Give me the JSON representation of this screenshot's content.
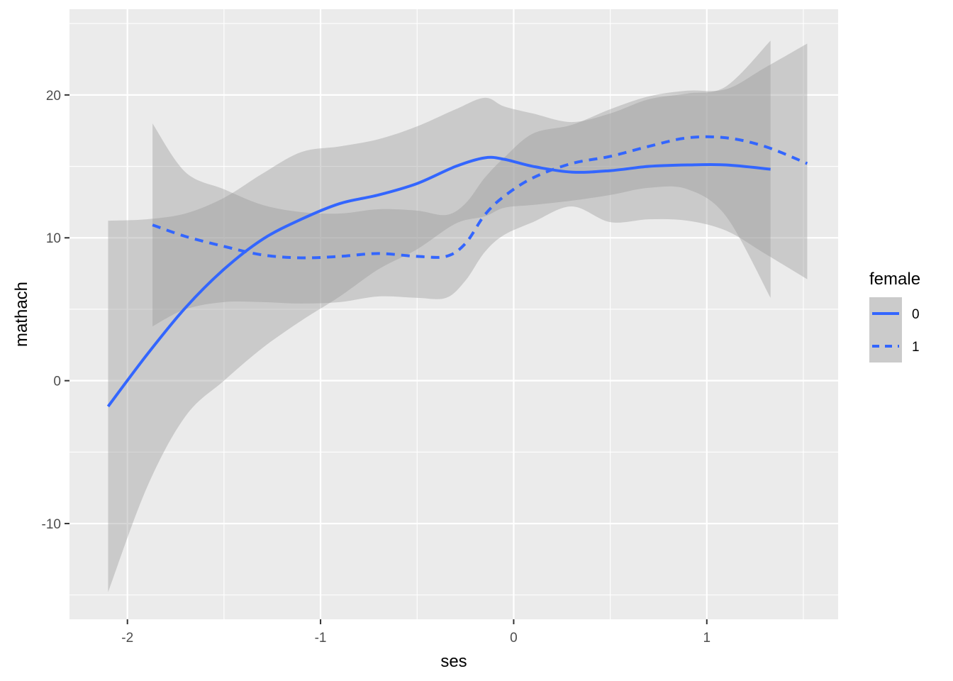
{
  "chart_data": {
    "type": "line",
    "xlabel": "ses",
    "ylabel": "mathach",
    "xlim": [
      -2.3,
      1.68
    ],
    "ylim": [
      -16.7,
      26.0
    ],
    "x_ticks": [
      -2,
      -1,
      0,
      1
    ],
    "x_tick_labels": [
      "-2",
      "-1",
      "0",
      "1"
    ],
    "y_ticks": [
      -10,
      0,
      10,
      20
    ],
    "y_tick_labels": [
      "-10",
      "0",
      "10",
      "20"
    ],
    "grid": true,
    "panel_background": "#ebebeb",
    "grid_color": "#ffffff",
    "legend": {
      "title": "female",
      "placement": "right",
      "entries": [
        {
          "label": "0",
          "linetype": "solid"
        },
        {
          "label": "1",
          "linetype": "dashed"
        }
      ]
    },
    "series": [
      {
        "name": "0",
        "color": "#3366ff",
        "linetype": "solid",
        "x": [
          -2.1,
          -1.9,
          -1.7,
          -1.5,
          -1.3,
          -1.1,
          -0.9,
          -0.7,
          -0.5,
          -0.3,
          -0.15,
          -0.05,
          0.1,
          0.3,
          0.5,
          0.7,
          0.9,
          1.1,
          1.33
        ],
        "y": [
          -1.8,
          1.8,
          5.1,
          7.8,
          9.9,
          11.3,
          12.4,
          13.0,
          13.8,
          15.0,
          15.6,
          15.5,
          15.0,
          14.6,
          14.7,
          15.0,
          15.1,
          15.1,
          14.8
        ],
        "ci_lower": [
          -14.8,
          -7.5,
          -2.5,
          0.0,
          2.3,
          4.2,
          5.9,
          7.8,
          9.2,
          11.0,
          11.5,
          12.1,
          12.3,
          12.6,
          13.0,
          13.5,
          13.4,
          11.5,
          5.8
        ],
        "ci_upper": [
          11.2,
          11.3,
          11.7,
          12.8,
          14.5,
          16.0,
          16.4,
          16.9,
          17.8,
          19.0,
          19.8,
          19.2,
          18.7,
          18.1,
          18.7,
          19.7,
          20.1,
          20.6,
          23.8
        ]
      },
      {
        "name": "1",
        "color": "#3366ff",
        "linetype": "dashed",
        "x": [
          -1.87,
          -1.7,
          -1.5,
          -1.3,
          -1.1,
          -0.9,
          -0.7,
          -0.5,
          -0.35,
          -0.25,
          -0.15,
          -0.05,
          0.1,
          0.3,
          0.5,
          0.7,
          0.9,
          1.1,
          1.3,
          1.52
        ],
        "y": [
          10.9,
          10.1,
          9.4,
          8.8,
          8.6,
          8.7,
          8.9,
          8.7,
          8.7,
          9.6,
          11.6,
          12.9,
          14.2,
          15.2,
          15.7,
          16.4,
          17.0,
          17.0,
          16.4,
          15.2
        ],
        "ci_lower": [
          3.8,
          5.0,
          5.5,
          5.5,
          5.4,
          5.5,
          5.9,
          5.8,
          5.8,
          7.0,
          9.0,
          10.2,
          11.1,
          12.2,
          11.1,
          11.3,
          11.2,
          10.5,
          8.9,
          7.1
        ],
        "ci_upper": [
          18.0,
          14.6,
          13.4,
          12.3,
          11.8,
          11.7,
          12.0,
          11.9,
          11.6,
          12.4,
          14.2,
          15.6,
          17.3,
          17.9,
          19.0,
          19.9,
          20.3,
          20.4,
          21.9,
          23.6
        ]
      }
    ]
  }
}
